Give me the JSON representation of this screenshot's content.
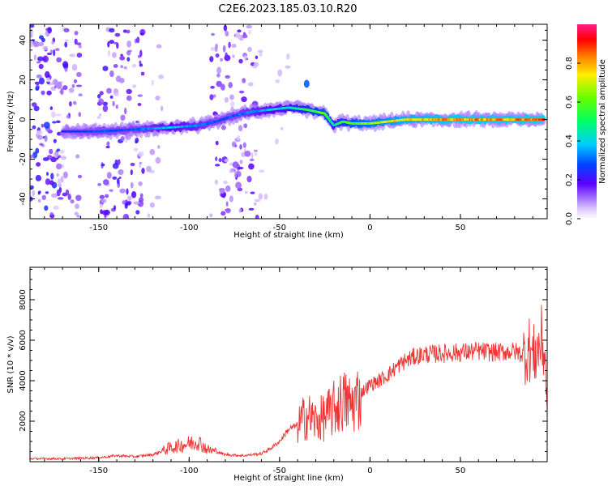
{
  "title": "C2E6.2023.185.03.10.R20",
  "chart_data": [
    {
      "type": "heatmap",
      "title": "C2E6.2023.185.03.10.R20",
      "xlabel": "Height of straight line (km)",
      "ylabel": "Frequency (Hz)",
      "xlim": [
        -188,
        98
      ],
      "ylim": [
        -50,
        48
      ],
      "xticks": [
        -150,
        -100,
        -50,
        0,
        50
      ],
      "xtick_labels": [
        "-150",
        "-100",
        "-50",
        "0",
        "50"
      ],
      "yticks": [
        -40,
        -20,
        0,
        20,
        40
      ],
      "ytick_labels": [
        "-40",
        "-20",
        "0",
        "20",
        "40"
      ],
      "colorbar": {
        "label": "Normalized spectral amplitude",
        "range": [
          0,
          1
        ],
        "ticks": [
          0.0,
          0.2,
          0.4,
          0.6,
          0.8
        ],
        "tick_labels": [
          "0.0",
          "0.2",
          "0.4",
          "0.6",
          "0.8"
        ],
        "colormap": "rainbow"
      },
      "ridge": {
        "name": "dominant frequency trace",
        "x": [
          -170,
          -150,
          -130,
          -110,
          -95,
          -85,
          -75,
          -65,
          -55,
          -45,
          -35,
          -25,
          -20,
          -15,
          -10,
          0,
          20,
          50,
          80,
          96
        ],
        "y": [
          -6,
          -6,
          -5,
          -4,
          -3,
          -1,
          2,
          4,
          5,
          6,
          5,
          3,
          -3,
          -1,
          -2,
          -2,
          0,
          0,
          0,
          0
        ],
        "amplitude": [
          0.25,
          0.3,
          0.3,
          0.4,
          0.35,
          0.3,
          0.3,
          0.35,
          0.4,
          0.45,
          0.55,
          0.65,
          0.45,
          0.6,
          0.65,
          0.7,
          0.8,
          0.85,
          0.85,
          0.9
        ]
      },
      "features": [
        {
          "name": "isolated blob",
          "x": -35,
          "y": 18,
          "amplitude": 0.3
        }
      ]
    },
    {
      "type": "line",
      "xlabel": "Height of straight line (km)",
      "ylabel": "SNR (10 * v/v)",
      "xlim": [
        -188,
        98
      ],
      "ylim": [
        0,
        9600
      ],
      "xticks": [
        -150,
        -100,
        -50,
        0,
        50
      ],
      "xtick_labels": [
        "-150",
        "-100",
        "-50",
        "0",
        "50"
      ],
      "yticks": [
        2000,
        4000,
        6000,
        8000
      ],
      "ytick_labels": [
        "2000",
        "4000",
        "6000",
        "8000"
      ],
      "color": "#ee3333",
      "series": [
        {
          "name": "SNR",
          "x": [
            -188,
            -170,
            -150,
            -140,
            -130,
            -120,
            -110,
            -100,
            -95,
            -90,
            -85,
            -80,
            -70,
            -60,
            -55,
            -50,
            -45,
            -40,
            -35,
            -30,
            -25,
            -20,
            -15,
            -10,
            -5,
            0,
            5,
            10,
            15,
            20,
            25,
            30,
            40,
            50,
            60,
            70,
            80,
            85,
            88,
            90,
            92,
            95,
            97,
            98
          ],
          "y": [
            150,
            150,
            200,
            300,
            250,
            350,
            700,
            900,
            1000,
            600,
            500,
            350,
            300,
            400,
            650,
            1000,
            1600,
            1800,
            2300,
            2000,
            2200,
            2600,
            3000,
            2800,
            3400,
            3800,
            4000,
            4300,
            4700,
            5000,
            5200,
            5300,
            5350,
            5400,
            5450,
            5400,
            5450,
            5300,
            5600,
            5200,
            5400,
            6000,
            5000,
            2000
          ]
        }
      ]
    }
  ]
}
